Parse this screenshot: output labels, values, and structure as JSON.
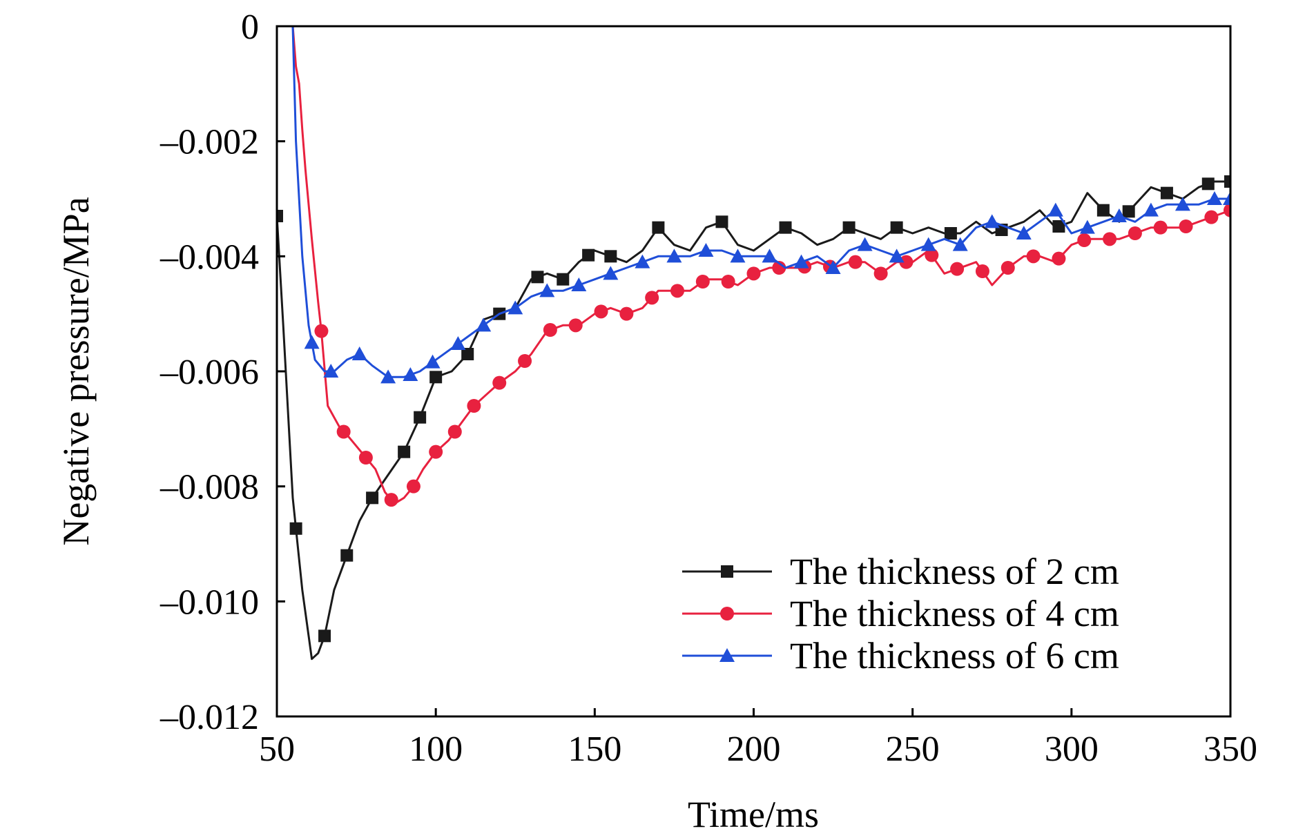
{
  "chart_data": {
    "type": "line",
    "xlabel": "Time/ms",
    "ylabel": "Negative pressure/MPa",
    "xlim": [
      50,
      350
    ],
    "ylim": [
      -0.012,
      0
    ],
    "xticks": [
      50,
      100,
      150,
      200,
      250,
      300,
      350
    ],
    "xtick_labels": [
      "50",
      "100",
      "150",
      "200",
      "250",
      "300",
      "350"
    ],
    "yticks": [
      0,
      -0.002,
      -0.004,
      -0.006,
      -0.008,
      -0.01,
      -0.012
    ],
    "ytick_labels": [
      "0",
      "–0.002",
      "–0.004",
      "–0.006",
      "–0.008",
      "–0.010",
      "–0.012"
    ],
    "grid": false,
    "legend_position": "bottom-right",
    "series": [
      {
        "name": "The thickness of 2 cm",
        "color": "#1a1a1a",
        "marker": "square",
        "points": [
          [
            50,
            -0.0033
          ],
          [
            52,
            -0.0052
          ],
          [
            55,
            -0.0082
          ],
          [
            58,
            -0.0098
          ],
          [
            60,
            -0.0106
          ],
          [
            61,
            -0.011
          ],
          [
            63,
            -0.0109
          ],
          [
            65,
            -0.0106
          ],
          [
            68,
            -0.0098
          ],
          [
            72,
            -0.0092
          ],
          [
            76,
            -0.0086
          ],
          [
            80,
            -0.0082
          ],
          [
            85,
            -0.0078
          ],
          [
            90,
            -0.0074
          ],
          [
            95,
            -0.0068
          ],
          [
            100,
            -0.0061
          ],
          [
            105,
            -0.006
          ],
          [
            110,
            -0.0057
          ],
          [
            115,
            -0.0051
          ],
          [
            120,
            -0.005
          ],
          [
            125,
            -0.0049
          ],
          [
            130,
            -0.0044
          ],
          [
            135,
            -0.0043
          ],
          [
            140,
            -0.0044
          ],
          [
            145,
            -0.0041
          ],
          [
            150,
            -0.0039
          ],
          [
            155,
            -0.004
          ],
          [
            160,
            -0.0041
          ],
          [
            165,
            -0.0039
          ],
          [
            170,
            -0.0035
          ],
          [
            175,
            -0.0038
          ],
          [
            180,
            -0.0039
          ],
          [
            185,
            -0.0035
          ],
          [
            190,
            -0.0034
          ],
          [
            195,
            -0.0038
          ],
          [
            200,
            -0.0039
          ],
          [
            205,
            -0.0037
          ],
          [
            210,
            -0.0035
          ],
          [
            215,
            -0.0036
          ],
          [
            220,
            -0.0038
          ],
          [
            225,
            -0.0037
          ],
          [
            230,
            -0.0035
          ],
          [
            235,
            -0.0036
          ],
          [
            240,
            -0.0037
          ],
          [
            245,
            -0.0035
          ],
          [
            250,
            -0.0036
          ],
          [
            255,
            -0.0035
          ],
          [
            260,
            -0.0036
          ],
          [
            265,
            -0.0036
          ],
          [
            270,
            -0.0034
          ],
          [
            275,
            -0.0036
          ],
          [
            280,
            -0.0035
          ],
          [
            285,
            -0.0034
          ],
          [
            290,
            -0.0032
          ],
          [
            295,
            -0.0035
          ],
          [
            300,
            -0.0034
          ],
          [
            305,
            -0.0029
          ],
          [
            310,
            -0.0032
          ],
          [
            315,
            -0.0034
          ],
          [
            320,
            -0.0031
          ],
          [
            325,
            -0.0028
          ],
          [
            330,
            -0.0029
          ],
          [
            335,
            -0.003
          ],
          [
            340,
            -0.0028
          ],
          [
            345,
            -0.0027
          ],
          [
            350,
            -0.0027
          ]
        ],
        "marker_x": [
          50,
          56,
          65,
          72,
          80,
          90,
          95,
          100,
          110,
          120,
          132,
          140,
          148,
          155,
          170,
          190,
          210,
          230,
          245,
          262,
          278,
          296,
          310,
          318,
          330,
          343,
          350
        ]
      },
      {
        "name": "The thickness of 4 cm",
        "color": "#e8213f",
        "marker": "circle",
        "points": [
          [
            55,
            0
          ],
          [
            56,
            -0.0007
          ],
          [
            57,
            -0.001
          ],
          [
            58,
            -0.0018
          ],
          [
            59,
            -0.0025
          ],
          [
            61,
            -0.0037
          ],
          [
            63,
            -0.0048
          ],
          [
            64,
            -0.0053
          ],
          [
            66,
            -0.0066
          ],
          [
            68,
            -0.0068
          ],
          [
            70,
            -0.007
          ],
          [
            72,
            -0.0071
          ],
          [
            75,
            -0.0073
          ],
          [
            78,
            -0.0075
          ],
          [
            81,
            -0.0077
          ],
          [
            84,
            -0.0081
          ],
          [
            87,
            -0.0083
          ],
          [
            90,
            -0.0082
          ],
          [
            93,
            -0.008
          ],
          [
            96,
            -0.0077
          ],
          [
            100,
            -0.0074
          ],
          [
            104,
            -0.0072
          ],
          [
            108,
            -0.0069
          ],
          [
            112,
            -0.0066
          ],
          [
            116,
            -0.0064
          ],
          [
            120,
            -0.0062
          ],
          [
            125,
            -0.006
          ],
          [
            130,
            -0.0057
          ],
          [
            135,
            -0.0053
          ],
          [
            140,
            -0.0052
          ],
          [
            145,
            -0.0052
          ],
          [
            150,
            -0.005
          ],
          [
            155,
            -0.0049
          ],
          [
            160,
            -0.005
          ],
          [
            165,
            -0.0049
          ],
          [
            170,
            -0.0046
          ],
          [
            175,
            -0.0046
          ],
          [
            180,
            -0.0046
          ],
          [
            185,
            -0.0044
          ],
          [
            190,
            -0.0044
          ],
          [
            195,
            -0.0045
          ],
          [
            200,
            -0.0043
          ],
          [
            205,
            -0.0042
          ],
          [
            210,
            -0.0042
          ],
          [
            215,
            -0.0042
          ],
          [
            220,
            -0.0041
          ],
          [
            225,
            -0.0042
          ],
          [
            230,
            -0.0041
          ],
          [
            235,
            -0.0041
          ],
          [
            240,
            -0.0043
          ],
          [
            245,
            -0.0041
          ],
          [
            250,
            -0.0041
          ],
          [
            255,
            -0.0039
          ],
          [
            260,
            -0.0043
          ],
          [
            265,
            -0.0042
          ],
          [
            270,
            -0.0041
          ],
          [
            275,
            -0.0045
          ],
          [
            280,
            -0.0042
          ],
          [
            285,
            -0.004
          ],
          [
            290,
            -0.004
          ],
          [
            295,
            -0.0041
          ],
          [
            300,
            -0.0038
          ],
          [
            305,
            -0.0037
          ],
          [
            310,
            -0.0037
          ],
          [
            315,
            -0.0037
          ],
          [
            320,
            -0.0036
          ],
          [
            325,
            -0.0035
          ],
          [
            330,
            -0.0035
          ],
          [
            335,
            -0.0035
          ],
          [
            340,
            -0.0034
          ],
          [
            345,
            -0.0033
          ],
          [
            350,
            -0.0032
          ]
        ],
        "marker_x": [
          64,
          71,
          78,
          86,
          93,
          100,
          106,
          112,
          120,
          128,
          136,
          144,
          152,
          160,
          168,
          176,
          184,
          192,
          200,
          208,
          216,
          224,
          232,
          240,
          248,
          256,
          264,
          272,
          280,
          288,
          296,
          304,
          312,
          320,
          328,
          336,
          344,
          350
        ]
      },
      {
        "name": "The thickness of 6 cm",
        "color": "#1f4ed8",
        "marker": "triangle",
        "points": [
          [
            55,
            0
          ],
          [
            56,
            -0.002
          ],
          [
            58,
            -0.004
          ],
          [
            60,
            -0.0052
          ],
          [
            62,
            -0.0058
          ],
          [
            65,
            -0.006
          ],
          [
            68,
            -0.006
          ],
          [
            72,
            -0.0058
          ],
          [
            76,
            -0.0057
          ],
          [
            80,
            -0.0059
          ],
          [
            85,
            -0.0061
          ],
          [
            90,
            -0.0061
          ],
          [
            95,
            -0.006
          ],
          [
            100,
            -0.0058
          ],
          [
            105,
            -0.0056
          ],
          [
            110,
            -0.0054
          ],
          [
            115,
            -0.0052
          ],
          [
            120,
            -0.005
          ],
          [
            125,
            -0.0049
          ],
          [
            130,
            -0.0047
          ],
          [
            135,
            -0.0046
          ],
          [
            140,
            -0.0046
          ],
          [
            145,
            -0.0045
          ],
          [
            150,
            -0.0044
          ],
          [
            155,
            -0.0043
          ],
          [
            160,
            -0.0042
          ],
          [
            165,
            -0.0041
          ],
          [
            170,
            -0.004
          ],
          [
            175,
            -0.004
          ],
          [
            180,
            -0.004
          ],
          [
            185,
            -0.0039
          ],
          [
            190,
            -0.0039
          ],
          [
            195,
            -0.004
          ],
          [
            200,
            -0.004
          ],
          [
            205,
            -0.004
          ],
          [
            210,
            -0.0042
          ],
          [
            215,
            -0.0041
          ],
          [
            220,
            -0.004
          ],
          [
            225,
            -0.0042
          ],
          [
            230,
            -0.0039
          ],
          [
            235,
            -0.0038
          ],
          [
            240,
            -0.0039
          ],
          [
            245,
            -0.004
          ],
          [
            250,
            -0.0039
          ],
          [
            255,
            -0.0038
          ],
          [
            260,
            -0.0037
          ],
          [
            265,
            -0.0038
          ],
          [
            270,
            -0.0035
          ],
          [
            275,
            -0.0034
          ],
          [
            280,
            -0.0035
          ],
          [
            285,
            -0.0036
          ],
          [
            290,
            -0.0034
          ],
          [
            295,
            -0.0032
          ],
          [
            300,
            -0.0036
          ],
          [
            305,
            -0.0035
          ],
          [
            310,
            -0.0034
          ],
          [
            315,
            -0.0033
          ],
          [
            320,
            -0.0034
          ],
          [
            325,
            -0.0032
          ],
          [
            330,
            -0.0031
          ],
          [
            335,
            -0.0031
          ],
          [
            340,
            -0.0031
          ],
          [
            345,
            -0.003
          ],
          [
            350,
            -0.003
          ]
        ],
        "marker_x": [
          61,
          67,
          76,
          85,
          92,
          99,
          107,
          115,
          125,
          135,
          145,
          155,
          165,
          175,
          185,
          195,
          205,
          215,
          225,
          235,
          245,
          255,
          265,
          275,
          285,
          295,
          305,
          315,
          325,
          335,
          345,
          350
        ]
      }
    ]
  }
}
